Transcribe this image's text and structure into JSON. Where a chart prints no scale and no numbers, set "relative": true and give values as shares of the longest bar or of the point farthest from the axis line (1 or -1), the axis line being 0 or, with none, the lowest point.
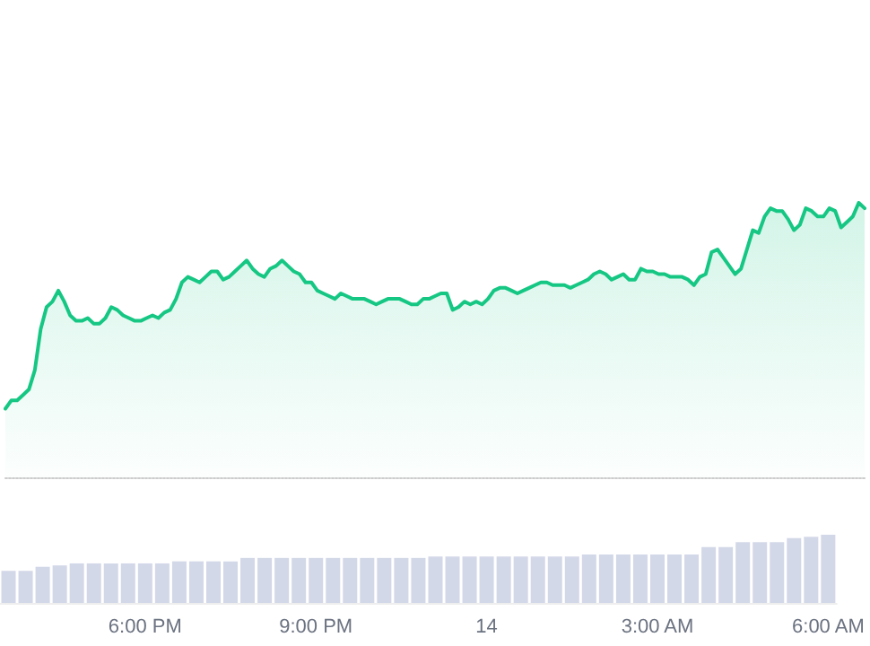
{
  "chart_data": [
    {
      "type": "area",
      "relative": true,
      "line_style": "solid",
      "categories": [
        null,
        null,
        null,
        null,
        null,
        null,
        null,
        null,
        null,
        null,
        null,
        null,
        null,
        null,
        null,
        null,
        null,
        null,
        null,
        null,
        null,
        null,
        null,
        null,
        null,
        null,
        null,
        null,
        null,
        null,
        null,
        null,
        null,
        null,
        null,
        null,
        null,
        null,
        null,
        null,
        null,
        null,
        null,
        null,
        null,
        null,
        null,
        null,
        null,
        null,
        null,
        null,
        null,
        null,
        null,
        null,
        null,
        null,
        null,
        null,
        null,
        null,
        null,
        null,
        null,
        null,
        null,
        null,
        null,
        null,
        null,
        null,
        null,
        null,
        null,
        null,
        null,
        null,
        null,
        null,
        null,
        null,
        null,
        null,
        null,
        null,
        null,
        null,
        null,
        null,
        null,
        null,
        null,
        null,
        null,
        null,
        null,
        null,
        null,
        null,
        null,
        null,
        null,
        null,
        null,
        null,
        null,
        null,
        null,
        null,
        null,
        null,
        null,
        null,
        null,
        null,
        null,
        null,
        null,
        null,
        null,
        null,
        null,
        null,
        null,
        null,
        null,
        null,
        null,
        null,
        null,
        null,
        null,
        null,
        null,
        null,
        null,
        null,
        null,
        null,
        null,
        null,
        null,
        null,
        null,
        null,
        null
      ],
      "series": [
        {
          "color": "#16c784",
          "values": [
            0.25,
            0.28,
            0.28,
            0.3,
            0.32,
            0.39,
            0.54,
            0.62,
            0.64,
            0.68,
            0.64,
            0.59,
            0.57,
            0.57,
            0.58,
            0.56,
            0.56,
            0.58,
            0.62,
            0.61,
            0.59,
            0.58,
            0.57,
            0.57,
            0.58,
            0.59,
            0.58,
            0.6,
            0.61,
            0.65,
            0.71,
            0.73,
            0.72,
            0.71,
            0.73,
            0.75,
            0.75,
            0.72,
            0.73,
            0.75,
            0.77,
            0.79,
            0.76,
            0.74,
            0.73,
            0.76,
            0.77,
            0.79,
            0.77,
            0.75,
            0.74,
            0.71,
            0.71,
            0.68,
            0.67,
            0.66,
            0.65,
            0.67,
            0.66,
            0.65,
            0.65,
            0.65,
            0.64,
            0.63,
            0.64,
            0.65,
            0.65,
            0.65,
            0.64,
            0.63,
            0.63,
            0.65,
            0.65,
            0.66,
            0.67,
            0.67,
            0.61,
            0.62,
            0.64,
            0.63,
            0.64,
            0.63,
            0.65,
            0.68,
            0.69,
            0.69,
            0.68,
            0.67,
            0.68,
            0.69,
            0.7,
            0.71,
            0.71,
            0.7,
            0.7,
            0.7,
            0.69,
            0.7,
            0.71,
            0.72,
            0.74,
            0.75,
            0.74,
            0.72,
            0.73,
            0.74,
            0.72,
            0.72,
            0.76,
            0.75,
            0.75,
            0.74,
            0.74,
            0.73,
            0.73,
            0.73,
            0.72,
            0.7,
            0.73,
            0.74,
            0.82,
            0.83,
            0.8,
            0.77,
            0.74,
            0.76,
            0.83,
            0.9,
            0.89,
            0.95,
            0.98,
            0.97,
            0.97,
            0.94,
            0.9,
            0.92,
            0.98,
            0.97,
            0.95,
            0.95,
            0.98,
            0.97,
            0.91,
            0.93,
            0.95,
            1,
            0.98
          ]
        }
      ]
    },
    {
      "type": "bar",
      "relative": true,
      "categories": [
        null,
        null,
        null,
        null,
        null,
        null,
        null,
        null,
        "6:00 PM",
        null,
        null,
        null,
        null,
        null,
        null,
        null,
        null,
        null,
        "9:00 PM",
        null,
        null,
        null,
        null,
        null,
        null,
        null,
        null,
        null,
        "14",
        null,
        null,
        null,
        null,
        null,
        null,
        null,
        null,
        null,
        "3:00 AM",
        null,
        null,
        null,
        null,
        null,
        null,
        null,
        null,
        null,
        "6:00 AM"
      ],
      "series": [
        {
          "color": "#d3d8e8",
          "values": [
            0.47,
            0.47,
            0.53,
            0.55,
            0.58,
            0.58,
            0.58,
            0.58,
            0.58,
            0.58,
            0.61,
            0.61,
            0.61,
            0.61,
            0.66,
            0.66,
            0.66,
            0.66,
            0.66,
            0.66,
            0.66,
            0.66,
            0.66,
            0.66,
            0.66,
            0.68,
            0.68,
            0.68,
            0.68,
            0.68,
            0.68,
            0.68,
            0.68,
            0.68,
            0.71,
            0.71,
            0.71,
            0.71,
            0.71,
            0.71,
            0.71,
            0.82,
            0.82,
            0.89,
            0.89,
            0.89,
            0.95,
            0.97,
            1
          ]
        }
      ]
    }
  ]
}
